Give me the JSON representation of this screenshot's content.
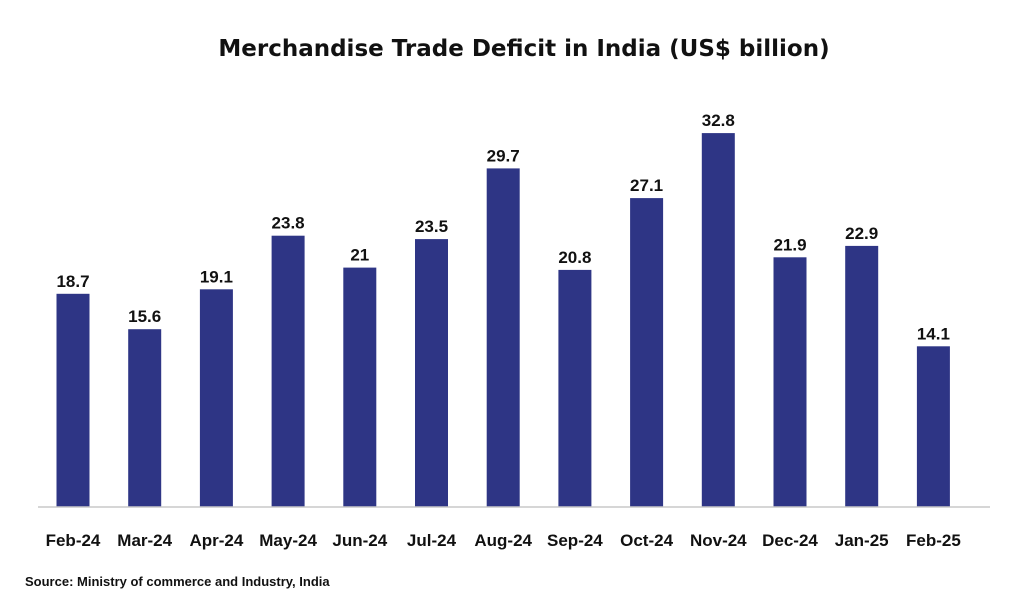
{
  "chart_data": {
    "type": "bar",
    "title": "Merchandise Trade Deficit in India (US$ billion)",
    "categories": [
      "Feb-24",
      "Mar-24",
      "Apr-24",
      "May-24",
      "Jun-24",
      "Jul-24",
      "Aug-24",
      "Sep-24",
      "Oct-24",
      "Nov-24",
      "Dec-24",
      "Jan-25",
      "Feb-25"
    ],
    "values": [
      18.7,
      15.6,
      19.1,
      23.8,
      21,
      23.5,
      29.7,
      20.8,
      27.1,
      32.8,
      21.9,
      22.9,
      14.1
    ],
    "value_labels": [
      "18.7",
      "15.6",
      "19.1",
      "23.8",
      "21",
      "23.5",
      "29.7",
      "20.8",
      "27.1",
      "32.8",
      "21.9",
      "22.9",
      "14.1"
    ],
    "xlabel": "",
    "ylabel": "",
    "ylim": [
      0,
      35
    ],
    "grid": false,
    "bar_color": "#2e3585"
  },
  "source": "Source: Ministry of commerce and Industry, India"
}
